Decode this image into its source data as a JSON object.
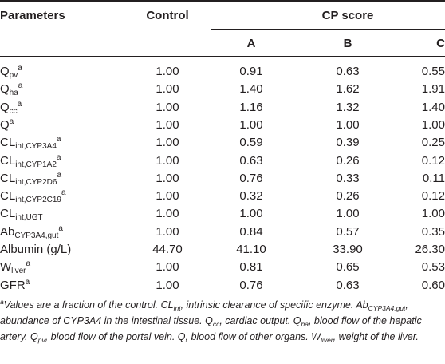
{
  "table": {
    "headers": {
      "parameters": "Parameters",
      "control": "Control",
      "cp_score": "CP score",
      "a": "A",
      "b": "B",
      "c": "C"
    },
    "rows": [
      {
        "base": "Q",
        "sub": "pv",
        "sup": "a",
        "control": "1.00",
        "a": "0.91",
        "b": "0.63",
        "c": "0.55"
      },
      {
        "base": "Q",
        "sub": "ha",
        "sup": "a",
        "control": "1.00",
        "a": "1.40",
        "b": "1.62",
        "c": "1.91"
      },
      {
        "base": "Q",
        "sub": "cc",
        "sup": "a",
        "control": "1.00",
        "a": "1.16",
        "b": "1.32",
        "c": "1.40"
      },
      {
        "base": "Q",
        "sub": "",
        "sup": "a",
        "control": "1.00",
        "a": "1.00",
        "b": "1.00",
        "c": "1.00"
      },
      {
        "base": "CL",
        "sub": "int,CYP3A4",
        "sup": "a",
        "control": "1.00",
        "a": "0.59",
        "b": "0.39",
        "c": "0.25"
      },
      {
        "base": "CL",
        "sub": "int,CYP1A2",
        "sup": "a",
        "control": "1.00",
        "a": "0.63",
        "b": "0.26",
        "c": "0.12"
      },
      {
        "base": "CL",
        "sub": "int,CYP2D6",
        "sup": "a",
        "control": "1.00",
        "a": "0.76",
        "b": "0.33",
        "c": "0.11"
      },
      {
        "base": "CL",
        "sub": "int,CYP2C19",
        "sup": "a",
        "control": "1.00",
        "a": "0.32",
        "b": "0.26",
        "c": "0.12"
      },
      {
        "base": "CL",
        "sub": "int,UGT",
        "sup": "",
        "control": "1.00",
        "a": "1.00",
        "b": "1.00",
        "c": "1.00"
      },
      {
        "base": "Ab",
        "sub": "CYP3A4,gut",
        "sup": "a",
        "control": "1.00",
        "a": "0.84",
        "b": "0.57",
        "c": "0.35"
      },
      {
        "base": "Albumin (g/L)",
        "sub": "",
        "sup": "",
        "control": "44.70",
        "a": "41.10",
        "b": "33.90",
        "c": "26.30"
      },
      {
        "base": "W",
        "sub": "liver",
        "sup": "a",
        "control": "1.00",
        "a": "0.81",
        "b": "0.65",
        "c": "0.53"
      },
      {
        "base": "GFR",
        "sub": "",
        "sup": "a",
        "control": "1.00",
        "a": "0.76",
        "b": "0.63",
        "c": "0.60"
      }
    ]
  },
  "footnote": {
    "marker": "a",
    "p1": "Values are a fraction of the control. ",
    "cl_base": "CL",
    "cl_sub": "int",
    "p2": ", intrinsic clearance of specific enzyme. ",
    "ab_base": "Ab",
    "ab_sub": "CYP3A4,gut",
    "p3": ", abundance of CYP3A4 in the intestinal tissue. ",
    "qcc_base": "Q",
    "qcc_sub": "cc",
    "p4": ", cardiac output. ",
    "qha_base": "Q",
    "qha_sub": "ha",
    "p5": ", blood flow of the hepatic artery. ",
    "qpv_base": "Q",
    "qpv_sub": "pv",
    "p6": ", blood flow of the portal vein. Q, blood flow of other organs. ",
    "w_base": "W",
    "w_sub": "liver",
    "p7": ", weight of the liver."
  }
}
